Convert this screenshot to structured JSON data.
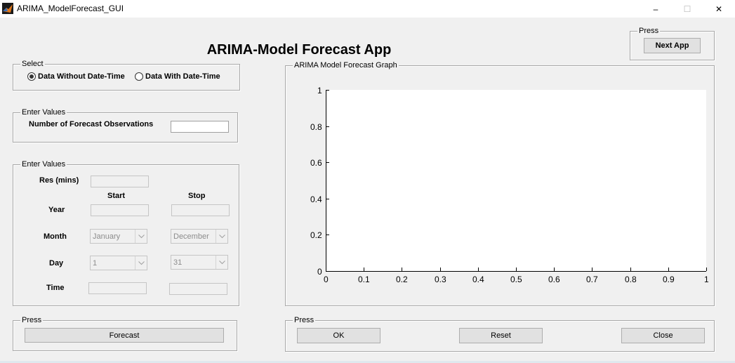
{
  "window": {
    "title": "ARIMA_ModelForecast_GUI",
    "controls": {
      "minimize": "–",
      "maximize": "☐",
      "close": "✕"
    }
  },
  "app_title": "ARIMA-Model Forecast App",
  "next_panel": {
    "legend": "Press",
    "button": "Next App"
  },
  "select_panel": {
    "legend": "Select",
    "options": [
      {
        "label": "Data Without Date-Time",
        "selected": true
      },
      {
        "label": "Data With Date-Time",
        "selected": false
      }
    ]
  },
  "forecast_obs_panel": {
    "legend": "Enter Values",
    "label": "Number of Forecast Observations",
    "value": ""
  },
  "datetime_panel": {
    "legend": "Enter Values",
    "res_label": "Res (mins)",
    "start_header": "Start",
    "stop_header": "Stop",
    "year_label": "Year",
    "month_label": "Month",
    "day_label": "Day",
    "time_label": "Time",
    "start_month": "January",
    "stop_month": "December",
    "start_day": "1",
    "stop_day": "31"
  },
  "forecast_button_panel": {
    "legend": "Press",
    "button": "Forecast"
  },
  "graph_panel": {
    "legend": "ARIMA Model Forecast Graph"
  },
  "chart_data": {
    "type": "line",
    "title": "",
    "xlabel": "",
    "ylabel": "",
    "xlim": [
      0,
      1
    ],
    "ylim": [
      0,
      1
    ],
    "x_ticks": [
      "0",
      "0.1",
      "0.2",
      "0.3",
      "0.4",
      "0.5",
      "0.6",
      "0.7",
      "0.8",
      "0.9",
      "1"
    ],
    "y_ticks": [
      "0",
      "0.2",
      "0.4",
      "0.6",
      "0.8",
      "1"
    ],
    "series": []
  },
  "action_panel": {
    "legend": "Press",
    "ok": "OK",
    "reset": "Reset",
    "close": "Close"
  },
  "colors": {
    "app_icon": "#e0771a",
    "background": "#f0f0f0"
  }
}
